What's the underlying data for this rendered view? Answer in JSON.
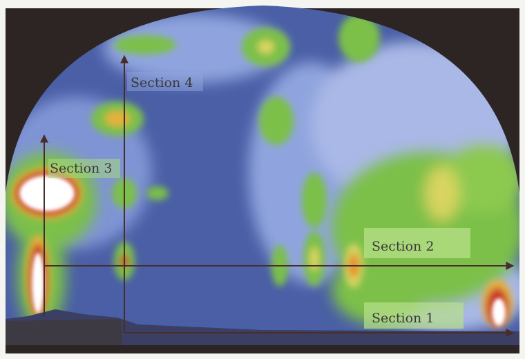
{
  "diagram": {
    "sections": [
      {
        "id": "section-1",
        "label": "Section 1",
        "orientation": "horizontal"
      },
      {
        "id": "section-2",
        "label": "Section 2",
        "orientation": "horizontal"
      },
      {
        "id": "section-3",
        "label": "Section 3",
        "orientation": "vertical"
      },
      {
        "id": "section-4",
        "label": "Section 4",
        "orientation": "vertical"
      }
    ],
    "colors": {
      "background_frame": "#2c2524",
      "field_low": "#4a5fa6",
      "field_mid_low": "#a9b8e6",
      "field_mid": "#7cc04a",
      "field_high": "#e6b03a",
      "field_peak": "#c8342a",
      "field_max": "#ffffff",
      "section_line": "#4a2c2a",
      "label_box": "#b8e08a"
    },
    "colormap": [
      "low-blue",
      "light-blue",
      "green",
      "yellow",
      "red",
      "white"
    ]
  }
}
